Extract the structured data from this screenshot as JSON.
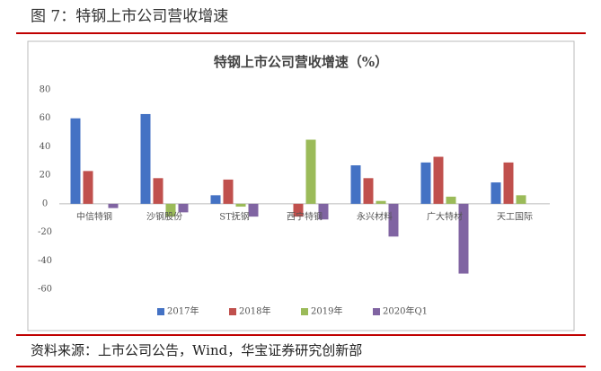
{
  "header": {
    "title": "图 7：特钢上市公司营收增速"
  },
  "source": "资料来源：上市公司公告，Wind，华宝证券研究创新部",
  "chart_data": {
    "type": "bar",
    "title": "特钢上市公司营收增速（%）",
    "categories": [
      "中信特钢",
      "沙钢股份",
      "ST抚钢",
      "西宁特钢",
      "永兴材料",
      "广大特材",
      "天工国际"
    ],
    "series": [
      {
        "name": "2017年",
        "color": "#4472c4",
        "values": [
          60,
          63,
          6,
          null,
          27,
          29,
          15
        ]
      },
      {
        "name": "2018年",
        "color": "#c0504d",
        "values": [
          23,
          18,
          17,
          -9,
          18,
          33,
          29
        ]
      },
      {
        "name": "2019年",
        "color": "#9bbb59",
        "values": [
          0,
          -9,
          -2,
          45,
          2,
          5,
          6
        ]
      },
      {
        "name": "2020年Q1",
        "color": "#8064a2",
        "values": [
          -3,
          -6,
          -9,
          -11,
          -23,
          -49,
          null
        ]
      }
    ],
    "ylim": [
      -60,
      80
    ],
    "yticks": [
      -60,
      -40,
      -20,
      0,
      20,
      40,
      60,
      80
    ],
    "legend": "bottom"
  }
}
